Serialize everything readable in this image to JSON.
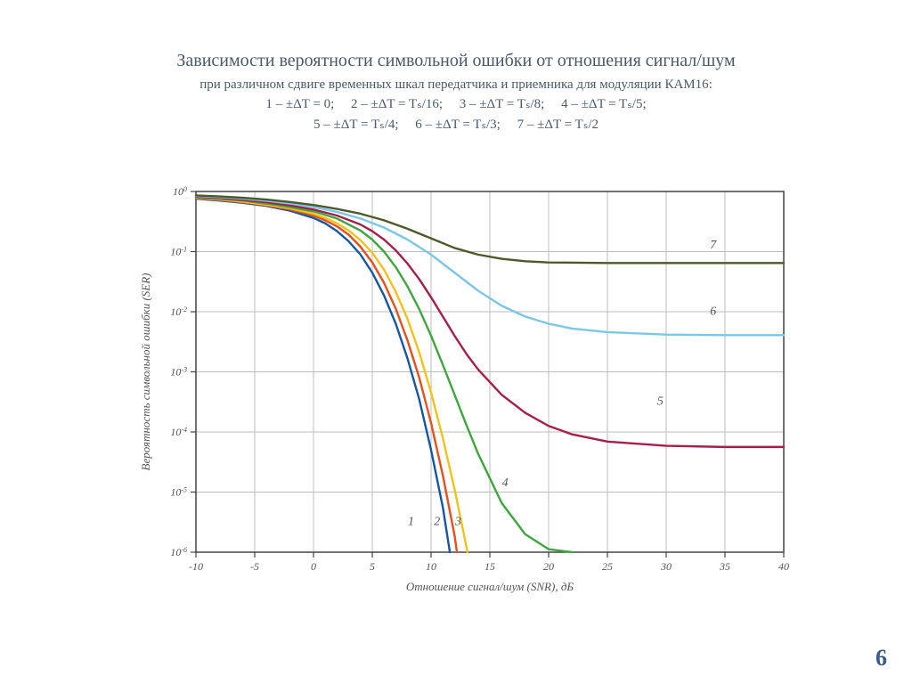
{
  "title": {
    "main": "Зависимости вероятности символьной ошибки от отношения сигнал/шум",
    "sub1": "при различном сдвиге временных шкал передатчика и приемника для модуляции КАМ16:",
    "sub2": "1 – ±ΔT = 0;     2 – ±ΔT = Tₛ/16;     3 – ±ΔT = Tₛ/8;     4 – ±ΔT = Tₛ/5;",
    "sub3": "5 – ±ΔT = Tₛ/4;     6 – ±ΔT = Tₛ/3;     7 – ±ΔT = Tₛ/2"
  },
  "page_number": "6",
  "chart": {
    "type": "line",
    "background_color": "#ffffff",
    "grid_color": "#bdbdbd",
    "axis_color": "#444444",
    "tick_font_size": 12,
    "label_font_size": 13,
    "label_font_style": "italic",
    "label_color": "#555555",
    "xlabel": "Отношение сигнал/шум (SNR), дБ",
    "ylabel": "Вероятность символьной ошибки (SER)",
    "xlim": [
      -10,
      40
    ],
    "xticks": [
      -10,
      -5,
      0,
      5,
      10,
      15,
      20,
      25,
      30,
      35,
      40
    ],
    "yscale": "log",
    "ylim_exp": [
      -6,
      0
    ],
    "ytick_exps": [
      0,
      -1,
      -2,
      -3,
      -4,
      -5,
      -6
    ],
    "line_width": 2.4,
    "series": [
      {
        "id": "1",
        "color": "#1456a6",
        "label_pos": {
          "x": 8.3,
          "y_exp": -5.55
        },
        "points": [
          [
            -10,
            -0.12
          ],
          [
            -8,
            -0.15
          ],
          [
            -6,
            -0.19
          ],
          [
            -4,
            -0.24
          ],
          [
            -2,
            -0.32
          ],
          [
            0,
            -0.44
          ],
          [
            1,
            -0.53
          ],
          [
            2,
            -0.66
          ],
          [
            3,
            -0.83
          ],
          [
            4,
            -1.05
          ],
          [
            5,
            -1.35
          ],
          [
            6,
            -1.73
          ],
          [
            7,
            -2.2
          ],
          [
            8,
            -2.78
          ],
          [
            9,
            -3.46
          ],
          [
            10,
            -4.3
          ],
          [
            11,
            -5.25
          ],
          [
            11.6,
            -6.0
          ]
        ]
      },
      {
        "id": "2",
        "color": "#e84f1b",
        "label_pos": {
          "x": 10.5,
          "y_exp": -5.55
        },
        "points": [
          [
            -10,
            -0.11
          ],
          [
            -8,
            -0.14
          ],
          [
            -6,
            -0.18
          ],
          [
            -4,
            -0.23
          ],
          [
            -2,
            -0.3
          ],
          [
            0,
            -0.4
          ],
          [
            1,
            -0.48
          ],
          [
            2,
            -0.58
          ],
          [
            3,
            -0.72
          ],
          [
            4,
            -0.92
          ],
          [
            5,
            -1.18
          ],
          [
            6,
            -1.52
          ],
          [
            7,
            -1.95
          ],
          [
            8,
            -2.48
          ],
          [
            9,
            -3.1
          ],
          [
            10,
            -3.85
          ],
          [
            11,
            -4.72
          ],
          [
            12,
            -5.72
          ],
          [
            12.2,
            -6.0
          ]
        ]
      },
      {
        "id": "3",
        "color": "#f2c21a",
        "label_pos": {
          "x": 12.3,
          "y_exp": -5.55
        },
        "points": [
          [
            -10,
            -0.1
          ],
          [
            -8,
            -0.13
          ],
          [
            -6,
            -0.17
          ],
          [
            -4,
            -0.22
          ],
          [
            -2,
            -0.28
          ],
          [
            0,
            -0.37
          ],
          [
            1,
            -0.44
          ],
          [
            2,
            -0.53
          ],
          [
            3,
            -0.65
          ],
          [
            4,
            -0.81
          ],
          [
            5,
            -1.02
          ],
          [
            6,
            -1.3
          ],
          [
            7,
            -1.67
          ],
          [
            8,
            -2.12
          ],
          [
            9,
            -2.68
          ],
          [
            10,
            -3.34
          ],
          [
            11,
            -4.1
          ],
          [
            12,
            -4.95
          ],
          [
            13,
            -5.9
          ],
          [
            13.1,
            -6.0
          ]
        ]
      },
      {
        "id": "4",
        "color": "#3fa63f",
        "label_pos": {
          "x": 16.3,
          "y_exp": -4.9
        },
        "points": [
          [
            -10,
            -0.095
          ],
          [
            -8,
            -0.12
          ],
          [
            -6,
            -0.15
          ],
          [
            -4,
            -0.2
          ],
          [
            -2,
            -0.26
          ],
          [
            0,
            -0.33
          ],
          [
            2,
            -0.45
          ],
          [
            4,
            -0.65
          ],
          [
            5,
            -0.8
          ],
          [
            6,
            -1.0
          ],
          [
            7,
            -1.26
          ],
          [
            8,
            -1.58
          ],
          [
            9,
            -1.96
          ],
          [
            10,
            -2.4
          ],
          [
            11,
            -2.88
          ],
          [
            12,
            -3.38
          ],
          [
            13,
            -3.88
          ],
          [
            14,
            -4.36
          ],
          [
            16,
            -5.18
          ],
          [
            18,
            -5.7
          ],
          [
            20,
            -5.95
          ],
          [
            22,
            -6.0
          ]
        ]
      },
      {
        "id": "5",
        "color": "#a51f4a",
        "label_pos": {
          "x": 29.5,
          "y_exp": -3.55
        },
        "points": [
          [
            -10,
            -0.085
          ],
          [
            -8,
            -0.11
          ],
          [
            -6,
            -0.14
          ],
          [
            -4,
            -0.18
          ],
          [
            -2,
            -0.23
          ],
          [
            0,
            -0.3
          ],
          [
            2,
            -0.4
          ],
          [
            4,
            -0.55
          ],
          [
            5,
            -0.66
          ],
          [
            6,
            -0.8
          ],
          [
            7,
            -0.98
          ],
          [
            8,
            -1.2
          ],
          [
            9,
            -1.46
          ],
          [
            10,
            -1.76
          ],
          [
            11,
            -2.08
          ],
          [
            12,
            -2.4
          ],
          [
            13,
            -2.7
          ],
          [
            14,
            -2.96
          ],
          [
            16,
            -3.38
          ],
          [
            18,
            -3.68
          ],
          [
            20,
            -3.9
          ],
          [
            22,
            -4.04
          ],
          [
            25,
            -4.16
          ],
          [
            30,
            -4.23
          ],
          [
            35,
            -4.25
          ],
          [
            40,
            -4.25
          ]
        ]
      },
      {
        "id": "6",
        "color": "#7cc7e8",
        "label_pos": {
          "x": 34.0,
          "y_exp": -2.05
        },
        "points": [
          [
            -10,
            -0.075
          ],
          [
            -8,
            -0.095
          ],
          [
            -6,
            -0.12
          ],
          [
            -4,
            -0.155
          ],
          [
            -2,
            -0.2
          ],
          [
            0,
            -0.26
          ],
          [
            2,
            -0.34
          ],
          [
            4,
            -0.45
          ],
          [
            6,
            -0.6
          ],
          [
            8,
            -0.8
          ],
          [
            10,
            -1.05
          ],
          [
            12,
            -1.35
          ],
          [
            14,
            -1.65
          ],
          [
            16,
            -1.9
          ],
          [
            18,
            -2.08
          ],
          [
            20,
            -2.2
          ],
          [
            22,
            -2.28
          ],
          [
            25,
            -2.34
          ],
          [
            30,
            -2.38
          ],
          [
            35,
            -2.39
          ],
          [
            40,
            -2.39
          ]
        ]
      },
      {
        "id": "7",
        "color": "#4c5a2a",
        "label_pos": {
          "x": 34.0,
          "y_exp": -0.95
        },
        "points": [
          [
            -10,
            -0.065
          ],
          [
            -8,
            -0.082
          ],
          [
            -6,
            -0.105
          ],
          [
            -4,
            -0.135
          ],
          [
            -2,
            -0.175
          ],
          [
            0,
            -0.225
          ],
          [
            2,
            -0.29
          ],
          [
            4,
            -0.37
          ],
          [
            6,
            -0.48
          ],
          [
            8,
            -0.62
          ],
          [
            10,
            -0.78
          ],
          [
            12,
            -0.94
          ],
          [
            14,
            -1.05
          ],
          [
            16,
            -1.12
          ],
          [
            18,
            -1.16
          ],
          [
            20,
            -1.18
          ],
          [
            25,
            -1.19
          ],
          [
            30,
            -1.19
          ],
          [
            35,
            -1.19
          ],
          [
            40,
            -1.19
          ]
        ]
      }
    ]
  }
}
